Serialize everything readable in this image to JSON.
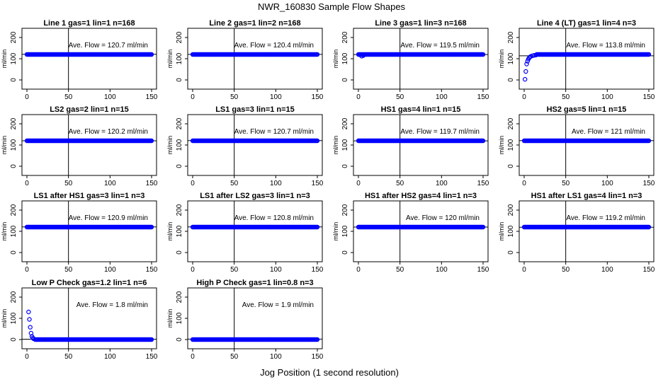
{
  "figure": {
    "title": "NWR_160830  Sample Flow Shapes",
    "xlabel": "Jog Position (1 second resolution)"
  },
  "chart_data": [
    {
      "type": "scatter",
      "title": "Line 1 gas=1 lin=1 n=168",
      "annotation": "Ave. Flow = 120.7  ml/min",
      "ylabel": "ml/min",
      "xlim": [
        0,
        150
      ],
      "ylim": [
        -20,
        220
      ],
      "xticks": [
        0,
        50,
        100,
        150
      ],
      "yticks": [
        0,
        100,
        200
      ],
      "refline_y": 120.7,
      "vline_x": 50,
      "shape": "flat",
      "level": 120,
      "x_range": [
        0,
        150
      ]
    },
    {
      "type": "scatter",
      "title": "Line 2 gas=1 lin=2 n=168",
      "annotation": "Ave. Flow = 120.4  ml/min",
      "ylabel": "ml/min",
      "xlim": [
        0,
        150
      ],
      "ylim": [
        -20,
        220
      ],
      "xticks": [
        0,
        50,
        100,
        150
      ],
      "yticks": [
        0,
        100,
        200
      ],
      "refline_y": 120.4,
      "vline_x": 50,
      "shape": "flat",
      "level": 120,
      "x_range": [
        0,
        150
      ]
    },
    {
      "type": "scatter",
      "title": "Line 3 gas=1 lin=3 n=168",
      "annotation": "Ave. Flow = 119.5  ml/min",
      "ylabel": "ml/min",
      "xlim": [
        0,
        150
      ],
      "ylim": [
        -20,
        220
      ],
      "xticks": [
        0,
        50,
        100,
        150
      ],
      "yticks": [
        0,
        100,
        200
      ],
      "refline_y": 119.5,
      "vline_x": 50,
      "shape": "flat",
      "level": 120,
      "x_range": [
        0,
        150
      ],
      "initial_points": [
        {
          "x": 2,
          "y": 118
        },
        {
          "x": 4,
          "y": 112
        },
        {
          "x": 6,
          "y": 115
        }
      ]
    },
    {
      "type": "scatter",
      "title": "Line 4 (LT) gas=1 lin=4 n=3",
      "annotation": "Ave. Flow = 113.8  ml/min",
      "ylabel": "ml/min",
      "xlim": [
        0,
        150
      ],
      "ylim": [
        -20,
        220
      ],
      "xticks": [
        0,
        50,
        100,
        150
      ],
      "yticks": [
        0,
        100,
        200
      ],
      "refline_y": 113.8,
      "vline_x": 50,
      "shape": "flat",
      "level": 120,
      "x_range": [
        15,
        150
      ],
      "initial_points": [
        {
          "x": 1,
          "y": 3
        },
        {
          "x": 2,
          "y": 40
        },
        {
          "x": 3,
          "y": 75
        },
        {
          "x": 4,
          "y": 88
        },
        {
          "x": 5,
          "y": 98
        },
        {
          "x": 6,
          "y": 104
        },
        {
          "x": 7,
          "y": 108
        },
        {
          "x": 8,
          "y": 111
        },
        {
          "x": 10,
          "y": 114
        },
        {
          "x": 12,
          "y": 116
        },
        {
          "x": 14,
          "y": 117
        }
      ]
    },
    {
      "type": "scatter",
      "title": "LS2 gas=2 lin=1 n=15",
      "annotation": "Ave. Flow = 120.2  ml/min",
      "ylabel": "ml/min",
      "xlim": [
        0,
        150
      ],
      "ylim": [
        -20,
        220
      ],
      "xticks": [
        0,
        50,
        100,
        150
      ],
      "yticks": [
        0,
        100,
        200
      ],
      "refline_y": 120.2,
      "vline_x": 50,
      "shape": "flat",
      "level": 120,
      "x_range": [
        0,
        150
      ]
    },
    {
      "type": "scatter",
      "title": "LS1 gas=3 lin=1 n=15",
      "annotation": "Ave. Flow = 120.7  ml/min",
      "ylabel": "ml/min",
      "xlim": [
        0,
        150
      ],
      "ylim": [
        -20,
        220
      ],
      "xticks": [
        0,
        50,
        100,
        150
      ],
      "yticks": [
        0,
        100,
        200
      ],
      "refline_y": 120.7,
      "vline_x": 50,
      "shape": "flat",
      "level": 120,
      "x_range": [
        0,
        150
      ]
    },
    {
      "type": "scatter",
      "title": "HS1 gas=4 lin=1 n=15",
      "annotation": "Ave. Flow = 119.7  ml/min",
      "ylabel": "ml/min",
      "xlim": [
        0,
        150
      ],
      "ylim": [
        -20,
        220
      ],
      "xticks": [
        0,
        50,
        100,
        150
      ],
      "yticks": [
        0,
        100,
        200
      ],
      "refline_y": 119.7,
      "vline_x": 50,
      "shape": "flat",
      "level": 120,
      "x_range": [
        0,
        150
      ]
    },
    {
      "type": "scatter",
      "title": "HS2 gas=5 lin=1 n=15",
      "annotation": "Ave. Flow = 121  ml/min",
      "ylabel": "ml/min",
      "xlim": [
        0,
        150
      ],
      "ylim": [
        -20,
        220
      ],
      "xticks": [
        0,
        50,
        100,
        150
      ],
      "yticks": [
        0,
        100,
        200
      ],
      "refline_y": 121,
      "vline_x": 50,
      "shape": "flat",
      "level": 120,
      "x_range": [
        0,
        150
      ]
    },
    {
      "type": "scatter",
      "title": "LS1 after HS1 gas=3 lin=1 n=3",
      "annotation": "Ave. Flow = 120.9  ml/min",
      "ylabel": "ml/min",
      "xlim": [
        0,
        150
      ],
      "ylim": [
        -20,
        220
      ],
      "xticks": [
        0,
        50,
        100,
        150
      ],
      "yticks": [
        0,
        100,
        200
      ],
      "refline_y": 120.9,
      "vline_x": 50,
      "shape": "flat",
      "level": 120,
      "x_range": [
        0,
        150
      ]
    },
    {
      "type": "scatter",
      "title": "LS1 after LS2 gas=3 lin=1 n=3",
      "annotation": "Ave. Flow = 120.8  ml/min",
      "ylabel": "ml/min",
      "xlim": [
        0,
        150
      ],
      "ylim": [
        -20,
        220
      ],
      "xticks": [
        0,
        50,
        100,
        150
      ],
      "yticks": [
        0,
        100,
        200
      ],
      "refline_y": 120.8,
      "vline_x": 50,
      "shape": "flat",
      "level": 120,
      "x_range": [
        0,
        150
      ]
    },
    {
      "type": "scatter",
      "title": "HS1 after HS2 gas=4 lin=1 n=3",
      "annotation": "Ave. Flow = 120  ml/min",
      "ylabel": "ml/min",
      "xlim": [
        0,
        150
      ],
      "ylim": [
        -20,
        220
      ],
      "xticks": [
        0,
        50,
        100,
        150
      ],
      "yticks": [
        0,
        100,
        200
      ],
      "refline_y": 120,
      "vline_x": 50,
      "shape": "flat",
      "level": 120,
      "x_range": [
        0,
        150
      ]
    },
    {
      "type": "scatter",
      "title": "HS1 after LS1 gas=4 lin=1 n=3",
      "annotation": "Ave. Flow = 119.2  ml/min",
      "ylabel": "ml/min",
      "xlim": [
        0,
        150
      ],
      "ylim": [
        -20,
        220
      ],
      "xticks": [
        0,
        50,
        100,
        150
      ],
      "yticks": [
        0,
        100,
        200
      ],
      "refline_y": 119.2,
      "vline_x": 50,
      "shape": "flat",
      "level": 120,
      "x_range": [
        0,
        150
      ]
    },
    {
      "type": "scatter",
      "title": "Low P Check gas=1.2 lin=1 n=6",
      "annotation": "Ave. Flow = 1.8  ml/min",
      "ylabel": "ml/min",
      "xlim": [
        0,
        150
      ],
      "ylim": [
        -20,
        220
      ],
      "xticks": [
        0,
        50,
        100,
        150
      ],
      "yticks": [
        0,
        100,
        200
      ],
      "refline_y": 1.8,
      "vline_x": 50,
      "shape": "flat",
      "level": 0,
      "x_range": [
        10,
        150
      ],
      "initial_points": [
        {
          "x": 2,
          "y": 130
        },
        {
          "x": 3,
          "y": 95
        },
        {
          "x": 4,
          "y": 58
        },
        {
          "x": 5,
          "y": 30
        },
        {
          "x": 6,
          "y": 15
        },
        {
          "x": 7,
          "y": 8
        },
        {
          "x": 8,
          "y": 4
        }
      ]
    },
    {
      "type": "scatter",
      "title": "High P Check gas=1 lin=0.8 n=3",
      "annotation": "Ave. Flow = 1.9  ml/min",
      "ylabel": "ml/min",
      "xlim": [
        0,
        150
      ],
      "ylim": [
        -20,
        220
      ],
      "xticks": [
        0,
        50,
        100,
        150
      ],
      "yticks": [
        0,
        100,
        200
      ],
      "refline_y": 1.9,
      "vline_x": 50,
      "shape": "flat",
      "level": 0,
      "x_range": [
        0,
        150
      ]
    }
  ],
  "colors": {
    "points": "#0000ff",
    "axes": "#000000",
    "background": "#ffffff"
  }
}
